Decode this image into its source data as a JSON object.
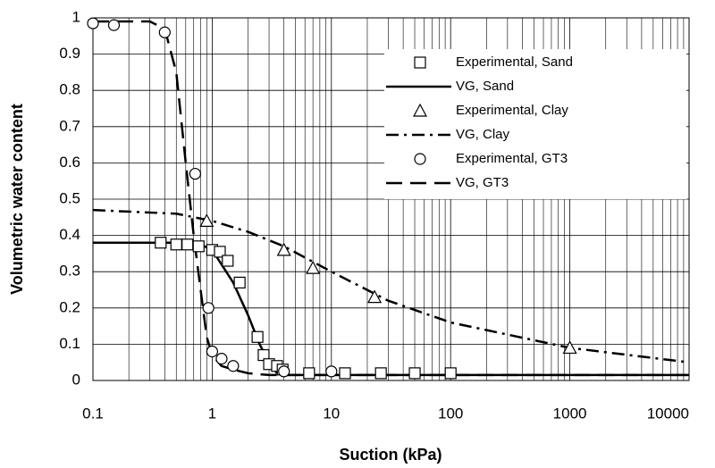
{
  "chart_data": {
    "type": "scatter-line",
    "x_label": "Suction (kPa)",
    "y_label": "Volumetric water content",
    "xlim": [
      0.1,
      10000
    ],
    "ylim": [
      0,
      1
    ],
    "x_log": true,
    "grid": true,
    "xticks": [
      0.1,
      1,
      10,
      100,
      1000,
      10000
    ],
    "yticks": [
      0,
      0.1,
      0.2,
      0.3,
      0.4,
      0.5,
      0.6,
      0.7,
      0.8,
      0.9,
      1
    ],
    "series": [
      {
        "name": "Experimental, Sand",
        "style": "square",
        "color": "#000000",
        "x": [
          0.37,
          0.5,
          0.62,
          0.77,
          1.0,
          1.16,
          1.35,
          1.7,
          2.4,
          2.7,
          3.0,
          3.5,
          3.9,
          6.5,
          13,
          26,
          50,
          100
        ],
        "values": [
          0.38,
          0.375,
          0.375,
          0.37,
          0.36,
          0.355,
          0.33,
          0.27,
          0.12,
          0.07,
          0.045,
          0.04,
          0.03,
          0.02,
          0.02,
          0.02,
          0.02,
          0.02
        ]
      },
      {
        "name": "VG, Sand",
        "style": "solid",
        "color": "#000000",
        "x": [
          0.1,
          0.5,
          0.8,
          1,
          1.5,
          2,
          2.5,
          3,
          3.5,
          4,
          10000
        ],
        "values": [
          0.38,
          0.38,
          0.375,
          0.36,
          0.27,
          0.18,
          0.1,
          0.05,
          0.02,
          0.015,
          0.015
        ]
      },
      {
        "name": "Experimental, Clay",
        "style": "triangle",
        "color": "#000000",
        "x": [
          0.9,
          4,
          7,
          23,
          1000
        ],
        "values": [
          0.44,
          0.36,
          0.31,
          0.23,
          0.09
        ]
      },
      {
        "name": "VG, Clay",
        "style": "dashdot",
        "color": "#000000",
        "x": [
          0.1,
          0.5,
          1,
          2,
          4,
          10,
          30,
          100,
          1000,
          10000
        ],
        "values": [
          0.47,
          0.46,
          0.44,
          0.41,
          0.37,
          0.3,
          0.22,
          0.16,
          0.09,
          0.05
        ]
      },
      {
        "name": "Experimental, GT3",
        "style": "circle",
        "color": "#000000",
        "x": [
          0.1,
          0.15,
          0.4,
          0.72,
          0.93,
          1.0,
          1.2,
          1.5,
          4,
          10
        ],
        "values": [
          0.985,
          0.98,
          0.96,
          0.57,
          0.2,
          0.08,
          0.06,
          0.04,
          0.025,
          0.025
        ]
      },
      {
        "name": "VG, GT3",
        "style": "dashed",
        "color": "#000000",
        "x": [
          0.1,
          0.3,
          0.4,
          0.5,
          0.6,
          0.7,
          0.8,
          0.9,
          1,
          1.2,
          1.5,
          2,
          3,
          10000
        ],
        "values": [
          0.99,
          0.99,
          0.97,
          0.85,
          0.6,
          0.4,
          0.25,
          0.12,
          0.07,
          0.04,
          0.03,
          0.02,
          0.015,
          0.015
        ]
      }
    ]
  }
}
